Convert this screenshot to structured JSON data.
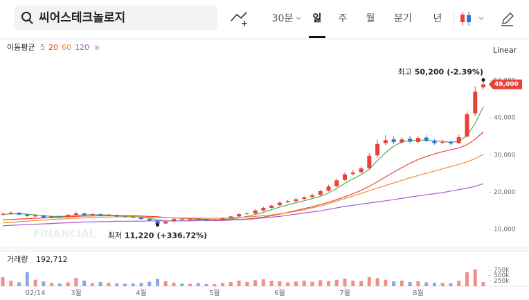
{
  "header": {
    "search": "씨어스테크놀로지",
    "tabs": [
      "30분",
      "일",
      "주",
      "월",
      "분기",
      "년"
    ],
    "active_tab": 1
  },
  "chart_data": [
    {
      "type": "candlestick",
      "categories": [
        null,
        null,
        null,
        null,
        "02/14",
        null,
        null,
        null,
        null,
        "3월",
        null,
        null,
        null,
        null,
        null,
        null,
        null,
        "4월",
        null,
        null,
        null,
        null,
        null,
        null,
        null,
        null,
        "5월",
        null,
        null,
        null,
        null,
        null,
        null,
        null,
        "6월",
        null,
        null,
        null,
        null,
        null,
        null,
        null,
        "7월",
        null,
        null,
        null,
        null,
        null,
        null,
        null,
        null,
        "8월",
        null,
        null,
        null,
        null,
        null,
        null,
        null,
        null
      ],
      "open": [
        14000,
        14200,
        14500,
        14000,
        13500,
        13800,
        13200,
        13500,
        13400,
        13900,
        14300,
        13800,
        14100,
        13700,
        13900,
        13500,
        13400,
        13200,
        12800,
        12300,
        11600,
        12200,
        12800,
        12600,
        12900,
        12700,
        12400,
        12600,
        13000,
        13500,
        14200,
        14300,
        15100,
        15800,
        16500,
        17300,
        17600,
        18200,
        18700,
        19300,
        20400,
        21600,
        23300,
        24900,
        25400,
        26500,
        29900,
        33200,
        34200,
        33400,
        34400,
        33500,
        34700,
        33900,
        33300,
        33600,
        33200,
        35000,
        41200,
        48200
      ],
      "high": [
        14600,
        14900,
        14700,
        14200,
        14100,
        13900,
        13700,
        13700,
        14100,
        14800,
        14500,
        14300,
        14300,
        14100,
        14000,
        13700,
        13500,
        13300,
        12900,
        12400,
        12300,
        13000,
        13000,
        13100,
        13100,
        12900,
        12800,
        13200,
        13700,
        14400,
        14600,
        15400,
        16100,
        16700,
        17500,
        17900,
        18400,
        18900,
        19600,
        20700,
        22000,
        23700,
        25400,
        26000,
        27000,
        30500,
        34200,
        35400,
        35000,
        34800,
        35100,
        35000,
        35300,
        34300,
        34100,
        33900,
        35500,
        41800,
        48500,
        50200
      ],
      "low": [
        13700,
        14000,
        13900,
        13400,
        13300,
        13000,
        13000,
        13200,
        13200,
        13700,
        13600,
        13600,
        13500,
        13500,
        13300,
        13200,
        13000,
        12600,
        12200,
        11220,
        11500,
        12000,
        12400,
        12400,
        12500,
        12200,
        12200,
        12400,
        12800,
        13300,
        14000,
        14100,
        14900,
        15600,
        16300,
        17100,
        17400,
        18000,
        18500,
        19100,
        20200,
        21300,
        22900,
        24500,
        25000,
        26000,
        29200,
        32600,
        33000,
        33000,
        33200,
        33200,
        33500,
        32800,
        32900,
        32700,
        33000,
        34700,
        40500,
        47600
      ],
      "close": [
        14200,
        14500,
        14000,
        13600,
        13800,
        13200,
        13500,
        13400,
        13900,
        14300,
        13800,
        14100,
        13700,
        13900,
        13500,
        13400,
        13200,
        12800,
        12400,
        11500,
        12100,
        12800,
        12600,
        12900,
        12700,
        12400,
        12600,
        13000,
        13500,
        14100,
        14300,
        15100,
        15800,
        16400,
        17200,
        17600,
        18100,
        18600,
        19200,
        20300,
        21500,
        23200,
        24800,
        25300,
        26400,
        29800,
        33000,
        34000,
        33500,
        34200,
        33600,
        34600,
        33800,
        33200,
        33500,
        33100,
        34800,
        41000,
        47000,
        49000
      ],
      "up_color": "#e8413c",
      "down_color": "#3a6fd8",
      "ma_label": "이동평균",
      "series": [
        {
          "name": "5",
          "color": "#4caf50",
          "values": [
            14000,
            14200,
            14200,
            14100,
            13900,
            13700,
            13500,
            13500,
            13600,
            13800,
            13900,
            14000,
            13900,
            13900,
            13700,
            13600,
            13500,
            13300,
            13000,
            12600,
            12300,
            12300,
            12300,
            12400,
            12600,
            12700,
            12600,
            12700,
            12800,
            13100,
            13500,
            14000,
            14600,
            15300,
            16000,
            16600,
            17200,
            17700,
            18300,
            18900,
            19800,
            21000,
            22400,
            23600,
            24700,
            26200,
            28500,
            30600,
            32400,
            33500,
            33900,
            34000,
            34000,
            33700,
            33700,
            33400,
            33700,
            35200,
            38500,
            43000
          ]
        },
        {
          "name": "20",
          "color": "#e8413c",
          "values": [
            12600,
            12700,
            12800,
            12900,
            13000,
            13100,
            13200,
            13300,
            13400,
            13500,
            13600,
            13600,
            13700,
            13700,
            13700,
            13700,
            13700,
            13600,
            13500,
            13400,
            13200,
            13100,
            13000,
            12900,
            12800,
            12700,
            12600,
            12600,
            12600,
            12700,
            12800,
            13000,
            13300,
            13700,
            14100,
            14600,
            15100,
            15600,
            16100,
            16700,
            17300,
            18000,
            18800,
            19600,
            20500,
            21600,
            22800,
            24100,
            25400,
            26600,
            27800,
            28800,
            29600,
            30300,
            30900,
            31400,
            31900,
            32800,
            34200,
            36200
          ]
        },
        {
          "name": "60",
          "color": "#f08c2e",
          "values": [
            11800,
            11900,
            12100,
            12200,
            12400,
            12500,
            12700,
            12800,
            12900,
            13000,
            13100,
            13200,
            13300,
            13300,
            13400,
            13400,
            13400,
            13300,
            13300,
            13200,
            13200,
            13100,
            13100,
            13000,
            13000,
            13000,
            13000,
            13000,
            13100,
            13200,
            13300,
            13500,
            13700,
            13900,
            14200,
            14500,
            14900,
            15300,
            15800,
            16300,
            16900,
            17600,
            18300,
            19000,
            19700,
            20400,
            21100,
            21800,
            22500,
            23200,
            23900,
            24500,
            25100,
            25700,
            26300,
            26900,
            27500,
            28200,
            29000,
            30200
          ]
        },
        {
          "name": "120",
          "color": "#a55bd6",
          "values": [
            11000,
            11100,
            11200,
            11300,
            11400,
            11500,
            11600,
            11700,
            11800,
            11900,
            12000,
            12000,
            12100,
            12100,
            12200,
            12200,
            12200,
            12200,
            12300,
            12300,
            12300,
            12300,
            12300,
            12300,
            12400,
            12400,
            12400,
            12400,
            12500,
            12600,
            12700,
            12900,
            13100,
            13300,
            13500,
            13800,
            14100,
            14400,
            14700,
            15000,
            15400,
            15800,
            16200,
            16500,
            16800,
            17100,
            17400,
            17700,
            18000,
            18400,
            18700,
            19000,
            19300,
            19600,
            19900,
            20300,
            20700,
            21100,
            21600,
            22300
          ]
        }
      ],
      "ylim": [
        5000,
        60500
      ],
      "yticks": [
        {
          "value": 10000,
          "label": "10,000"
        },
        {
          "value": 20000,
          "label": "20,000"
        },
        {
          "value": 30000,
          "label": "30,000"
        },
        {
          "value": 40000,
          "label": "40,000"
        },
        {
          "value": 50000,
          "label": "50,000"
        }
      ],
      "scale_label": "Linear",
      "last_label": "49,000",
      "watermark": "FINANCIAL",
      "annotations": [
        {
          "label": "최고",
          "index": 59,
          "value": 50200,
          "value_label": "50,200",
          "change": "(-2.39%)"
        },
        {
          "label": "최저",
          "index": 19,
          "value": 11220,
          "value_label": "11,220",
          "change": "(+336.72%)"
        }
      ]
    },
    {
      "type": "volume",
      "title": "거래량",
      "current_label": "192,712",
      "values": [
        420000,
        250000,
        180000,
        650000,
        300000,
        220000,
        150000,
        120000,
        180000,
        380000,
        260000,
        140000,
        200000,
        160000,
        130000,
        110000,
        120000,
        150000,
        210000,
        340000,
        230000,
        160000,
        120000,
        110000,
        140000,
        100000,
        90000,
        150000,
        190000,
        260000,
        200000,
        280000,
        320000,
        250000,
        230000,
        180000,
        220000,
        260000,
        210000,
        280000,
        240000,
        300000,
        350000,
        260000,
        240000,
        420000,
        380000,
        300000,
        220000,
        260000,
        200000,
        230000,
        180000,
        160000,
        150000,
        140000,
        250000,
        650000,
        780000,
        192712
      ],
      "ylim": [
        0,
        1560000
      ],
      "yticks": [
        {
          "value": 250000,
          "label": "250k"
        },
        {
          "value": 500000,
          "label": "500k"
        },
        {
          "value": 750000,
          "label": "750k"
        }
      ]
    }
  ]
}
